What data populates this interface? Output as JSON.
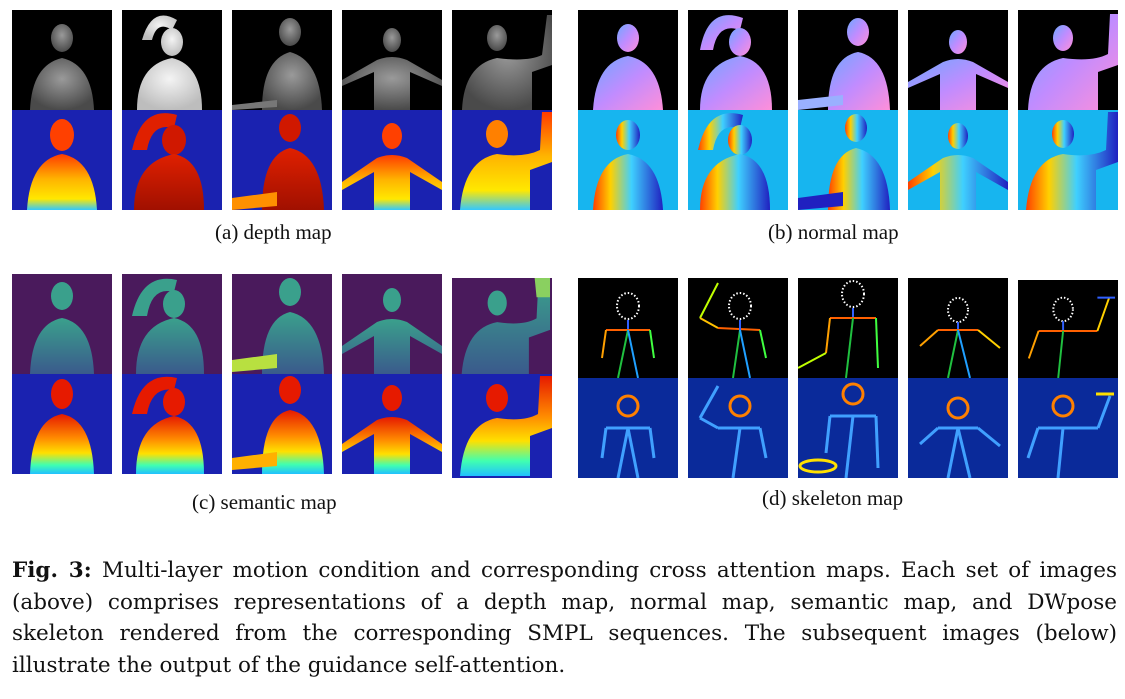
{
  "panels": {
    "a": {
      "label": "(a) depth map"
    },
    "b": {
      "label": "(b) normal map"
    },
    "c": {
      "label": "(c)  semantic map"
    },
    "d": {
      "label": "(d) skeleton map"
    }
  },
  "figure_caption": {
    "prefix": "Fig. 3:",
    "text": "Multi-layer motion condition and corresponding cross attention maps. Each set of images (above) comprises representations of a depth map, normal map, semantic map, and DWpose skeleton rendered from the corresponding SMPL sequences. The subsequent images (below) illustrate the output of the guidance self-attention."
  },
  "colors": {
    "depth_bg": "#000000",
    "attention_bg": "#1a22b0",
    "normal_attention_bg": "#17b5ef",
    "semantic_bg": "#4a1a5c",
    "skeleton_attention_bg": "#0a2a9a"
  }
}
